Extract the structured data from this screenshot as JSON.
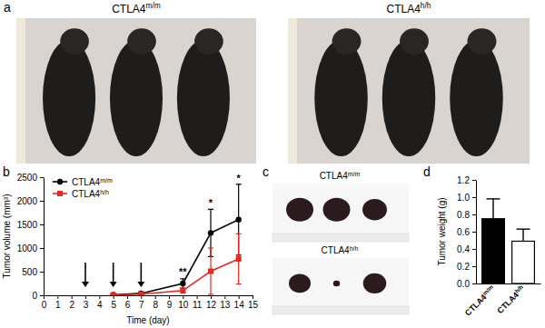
{
  "panels": [
    {
      "label": "a",
      "type": "photo",
      "captions": [
        "CTLA4m/m",
        "CTLA4h/h"
      ]
    },
    {
      "label": "c",
      "type": "photo",
      "captions": [
        "CTLA4m/m",
        "CTLA4h/h"
      ]
    }
  ],
  "chart_data": [
    {
      "panel": "b",
      "type": "line",
      "x_label": "Time (day)",
      "y_label": "Tumor volume (mm³)",
      "xlim": [
        0,
        15
      ],
      "xticks": [
        0,
        1,
        2,
        3,
        4,
        5,
        6,
        7,
        8,
        9,
        10,
        11,
        12,
        13,
        14,
        15
      ],
      "ylim": [
        0,
        2500
      ],
      "yticks": [
        0,
        500,
        1000,
        1500,
        2000,
        2500
      ],
      "legend": "upper left",
      "x": [
        5,
        7,
        10,
        12,
        14
      ],
      "series": [
        {
          "name": "CTLA4m/m",
          "color": "#000000",
          "marker": "circle",
          "values": [
            10,
            40,
            250,
            1320,
            1600
          ],
          "errors": [
            5,
            20,
            100,
            500,
            750
          ]
        },
        {
          "name": "CTLA4h/h",
          "color": "#e8271f",
          "marker": "square",
          "values": [
            5,
            25,
            100,
            510,
            770
          ],
          "errors": [
            3,
            15,
            50,
            490,
            530
          ]
        }
      ],
      "annotations": [
        {
          "text": "**",
          "x": 10,
          "y": 420
        },
        {
          "text": "*",
          "x": 12,
          "y": 1880
        },
        {
          "text": "*",
          "x": 14,
          "y": 2400
        }
      ],
      "arrow_days": [
        3,
        5,
        7
      ]
    },
    {
      "panel": "d",
      "type": "bar",
      "y_label": "Tumor weight (g)",
      "categories": [
        "CTLA4m/m",
        "CTLA4h/h"
      ],
      "values": [
        0.75,
        0.49
      ],
      "errors": [
        0.23,
        0.14
      ],
      "colors": [
        "#000000",
        "#ffffff"
      ],
      "ylim": [
        0,
        1.2
      ],
      "yticks": [
        {
          "value": 0,
          "label": "0.0"
        },
        0.2,
        0.4,
        0.6,
        0.8,
        {
          "value": 1,
          "label": "1.0"
        },
        1.2
      ]
    }
  ]
}
